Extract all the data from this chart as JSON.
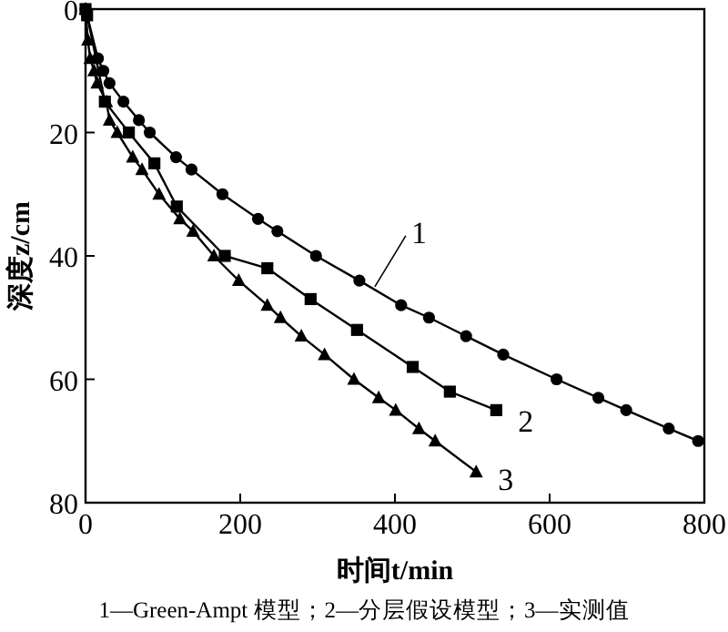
{
  "chart_data": {
    "type": "line",
    "xlabel": "时间t/min",
    "ylabel": "深度z/cm",
    "xlim": [
      0,
      800
    ],
    "xticks": [
      0,
      200,
      400,
      600,
      800
    ],
    "ylim": [
      80,
      0
    ],
    "yticks": [
      0,
      20,
      40,
      60,
      80
    ],
    "grid": false,
    "line_style": "solid",
    "series": [
      {
        "color": "#000000",
        "marker": "circle",
        "x": [
          0,
          16,
          23,
          31,
          49,
          69,
          83,
          117,
          137,
          177,
          223,
          248,
          298,
          354,
          408,
          444,
          492,
          540,
          609,
          663,
          699,
          754,
          792
        ],
        "values": [
          0,
          8,
          10,
          12,
          15,
          18,
          20,
          24,
          26,
          30,
          34,
          36,
          40,
          44,
          48,
          50,
          53,
          56,
          60,
          63,
          65,
          68,
          70
        ]
      },
      {
        "color": "#000000",
        "marker": "square",
        "x": [
          0,
          2,
          8,
          25,
          56,
          89,
          118,
          180,
          235,
          291,
          351,
          423,
          471,
          531
        ],
        "values": [
          0,
          1,
          null,
          15,
          20,
          25,
          32,
          40,
          42,
          47,
          52,
          58,
          62,
          65
        ]
      },
      {
        "color": "#000000",
        "marker": "triangle",
        "x": [
          0,
          3,
          6,
          11,
          15,
          27,
          31,
          41,
          61,
          73,
          95,
          122,
          139,
          166,
          198,
          235,
          252,
          279,
          309,
          347,
          379,
          401,
          431,
          452,
          505
        ],
        "values": [
          0,
          5,
          8,
          10,
          12,
          15,
          18,
          20,
          24,
          26,
          30,
          34,
          36,
          40,
          44,
          48,
          50,
          53,
          56,
          60,
          63,
          65,
          68,
          70,
          75
        ]
      }
    ],
    "annotations": [
      {
        "text": "1",
        "x": 374,
        "y": 45
      },
      {
        "text": "2",
        "x": 531,
        "y": 65
      },
      {
        "text": "3",
        "x": 505,
        "y": 75
      },
      "1—Green-Ampt 模型；2—分层假设模型；3—实测值"
    ]
  }
}
